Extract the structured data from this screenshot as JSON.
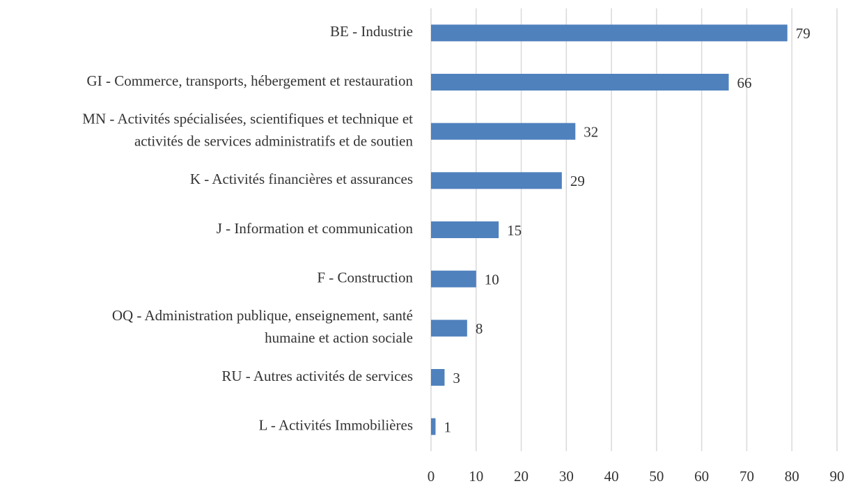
{
  "chart_data": {
    "type": "barh",
    "categories": [
      [
        "BE - Industrie"
      ],
      [
        "GI - Commerce, transports, hébergement et restauration"
      ],
      [
        "MN - Activités spécialisées,  scientifiques et technique et",
        "activités de services administratifs et de soutien"
      ],
      [
        "K - Activités financières et assurances"
      ],
      [
        "J - Information et communication"
      ],
      [
        "F - Construction"
      ],
      [
        "OQ -  Administration publique, enseignement, santé",
        "humaine et action sociale"
      ],
      [
        "RU - Autres activités de services"
      ],
      [
        "L - Activités Immobilières"
      ]
    ],
    "values": [
      79,
      66,
      32,
      29,
      15,
      10,
      8,
      3,
      1
    ],
    "color": "#4f81bd",
    "xlim": [
      0,
      90
    ],
    "xticks": [
      0,
      10,
      20,
      30,
      40,
      50,
      60,
      70,
      80,
      90
    ],
    "grid": true
  }
}
